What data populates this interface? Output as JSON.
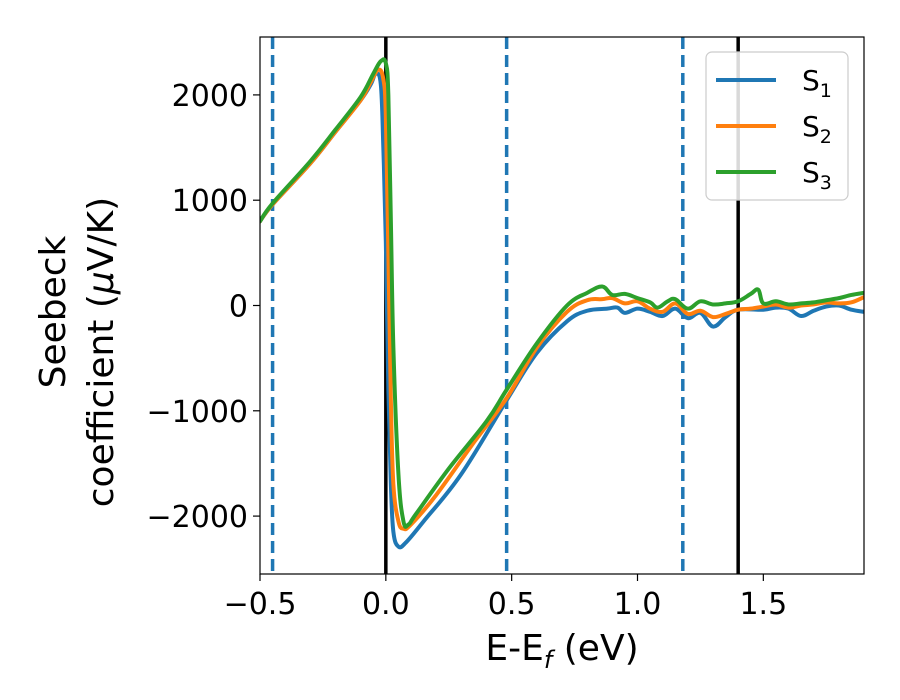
{
  "chart_data": {
    "type": "line",
    "xlabel": {
      "main": "E-E",
      "sub": "f",
      "rest": " (eV)"
    },
    "ylabel": {
      "line1": "Seebeck",
      "line2_pre": "coefficient  (",
      "line2_mu": "μ",
      "line2_post": "V/K)"
    },
    "xlim": [
      -0.5,
      1.9
    ],
    "ylim": [
      -2550,
      2550
    ],
    "xticks": [
      -0.5,
      0.0,
      0.5,
      1.0,
      1.5
    ],
    "xtick_labels": [
      "−0.5",
      "0.0",
      "0.5",
      "1.0",
      "1.5"
    ],
    "yticks": [
      -2000,
      -1000,
      0,
      1000,
      2000
    ],
    "ytick_labels": [
      "−2000",
      "−1000",
      "0",
      "1000",
      "2000"
    ],
    "vlines_solid": [
      0.0,
      1.4
    ],
    "vlines_dashed": [
      -0.45,
      0.48,
      1.18
    ],
    "grid": false,
    "legend_position": "top-right",
    "colors": {
      "s1": "#1f77b4",
      "s2": "#ff7f0e",
      "s3": "#2ca02c",
      "vline_solid": "#000000",
      "vline_dashed": "#1f77b4"
    },
    "series": [
      {
        "name": "S",
        "sub": "1",
        "color": "#1f77b4",
        "points": [
          [
            -0.5,
            800
          ],
          [
            -0.45,
            960
          ],
          [
            -0.3,
            1350
          ],
          [
            -0.2,
            1650
          ],
          [
            -0.1,
            1950
          ],
          [
            -0.06,
            2100
          ],
          [
            -0.04,
            2200
          ],
          [
            -0.02,
            2100
          ],
          [
            -0.01,
            1500
          ],
          [
            0.0,
            600
          ],
          [
            0.01,
            -800
          ],
          [
            0.02,
            -1700
          ],
          [
            0.03,
            -2150
          ],
          [
            0.05,
            -2290
          ],
          [
            0.08,
            -2250
          ],
          [
            0.15,
            -2050
          ],
          [
            0.3,
            -1600
          ],
          [
            0.48,
            -900
          ],
          [
            0.6,
            -450
          ],
          [
            0.72,
            -150
          ],
          [
            0.8,
            -50
          ],
          [
            0.88,
            -30
          ],
          [
            0.92,
            -20
          ],
          [
            0.95,
            -70
          ],
          [
            1.0,
            -30
          ],
          [
            1.05,
            -60
          ],
          [
            1.1,
            -100
          ],
          [
            1.15,
            -30
          ],
          [
            1.2,
            -120
          ],
          [
            1.25,
            -70
          ],
          [
            1.3,
            -200
          ],
          [
            1.35,
            -110
          ],
          [
            1.4,
            -40
          ],
          [
            1.5,
            -40
          ],
          [
            1.55,
            -20
          ],
          [
            1.6,
            -30
          ],
          [
            1.65,
            -100
          ],
          [
            1.7,
            -50
          ],
          [
            1.75,
            -10
          ],
          [
            1.8,
            0
          ],
          [
            1.85,
            -40
          ],
          [
            1.9,
            -60
          ]
        ]
      },
      {
        "name": "S",
        "sub": "2",
        "color": "#ff7f0e",
        "points": [
          [
            -0.5,
            800
          ],
          [
            -0.45,
            960
          ],
          [
            -0.3,
            1350
          ],
          [
            -0.2,
            1650
          ],
          [
            -0.1,
            1950
          ],
          [
            -0.06,
            2120
          ],
          [
            -0.03,
            2240
          ],
          [
            -0.01,
            2150
          ],
          [
            0.0,
            1800
          ],
          [
            0.01,
            500
          ],
          [
            0.02,
            -900
          ],
          [
            0.03,
            -1700
          ],
          [
            0.05,
            -2050
          ],
          [
            0.07,
            -2120
          ],
          [
            0.1,
            -2080
          ],
          [
            0.2,
            -1800
          ],
          [
            0.35,
            -1300
          ],
          [
            0.48,
            -880
          ],
          [
            0.6,
            -400
          ],
          [
            0.72,
            -60
          ],
          [
            0.8,
            50
          ],
          [
            0.86,
            60
          ],
          [
            0.9,
            70
          ],
          [
            0.95,
            20
          ],
          [
            1.0,
            40
          ],
          [
            1.05,
            -30
          ],
          [
            1.1,
            -60
          ],
          [
            1.15,
            20
          ],
          [
            1.2,
            -80
          ],
          [
            1.25,
            -50
          ],
          [
            1.3,
            -110
          ],
          [
            1.35,
            -80
          ],
          [
            1.4,
            -40
          ],
          [
            1.45,
            -30
          ],
          [
            1.5,
            -10
          ],
          [
            1.55,
            10
          ],
          [
            1.6,
            -20
          ],
          [
            1.65,
            0
          ],
          [
            1.7,
            10
          ],
          [
            1.75,
            30
          ],
          [
            1.8,
            20
          ],
          [
            1.85,
            30
          ],
          [
            1.9,
            80
          ]
        ]
      },
      {
        "name": "S",
        "sub": "3",
        "color": "#2ca02c",
        "points": [
          [
            -0.5,
            800
          ],
          [
            -0.45,
            970
          ],
          [
            -0.3,
            1370
          ],
          [
            -0.2,
            1670
          ],
          [
            -0.1,
            1980
          ],
          [
            -0.05,
            2200
          ],
          [
            -0.02,
            2320
          ],
          [
            0.0,
            2300
          ],
          [
            0.01,
            2000
          ],
          [
            0.02,
            800
          ],
          [
            0.03,
            -400
          ],
          [
            0.05,
            -1600
          ],
          [
            0.07,
            -2050
          ],
          [
            0.09,
            -2080
          ],
          [
            0.12,
            -1980
          ],
          [
            0.25,
            -1550
          ],
          [
            0.4,
            -1100
          ],
          [
            0.48,
            -800
          ],
          [
            0.6,
            -360
          ],
          [
            0.72,
            0
          ],
          [
            0.8,
            120
          ],
          [
            0.86,
            180
          ],
          [
            0.9,
            100
          ],
          [
            0.95,
            110
          ],
          [
            1.0,
            70
          ],
          [
            1.05,
            30
          ],
          [
            1.08,
            -20
          ],
          [
            1.12,
            40
          ],
          [
            1.15,
            60
          ],
          [
            1.2,
            -30
          ],
          [
            1.25,
            40
          ],
          [
            1.3,
            10
          ],
          [
            1.35,
            20
          ],
          [
            1.4,
            40
          ],
          [
            1.45,
            110
          ],
          [
            1.48,
            150
          ],
          [
            1.5,
            20
          ],
          [
            1.55,
            40
          ],
          [
            1.6,
            10
          ],
          [
            1.65,
            20
          ],
          [
            1.7,
            30
          ],
          [
            1.75,
            50
          ],
          [
            1.8,
            70
          ],
          [
            1.85,
            100
          ],
          [
            1.9,
            120
          ]
        ]
      }
    ]
  }
}
